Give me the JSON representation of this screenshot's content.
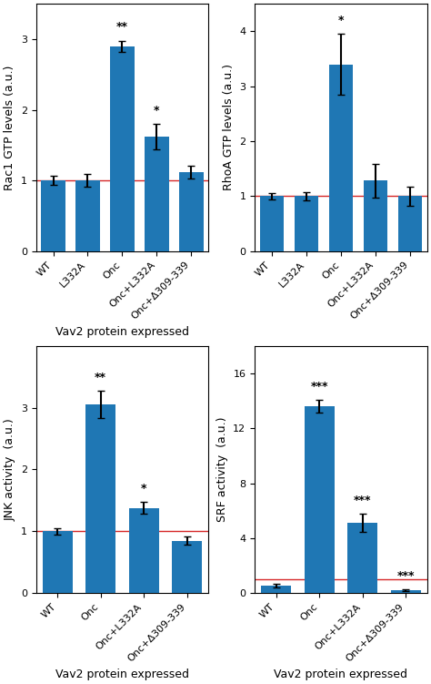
{
  "chart_data": [
    {
      "type": "bar",
      "categories": [
        "WT",
        "L332A",
        "Onc",
        "Onc+L332A",
        "Onc+Δ309-339"
      ],
      "values": [
        1.0,
        1.0,
        2.9,
        1.62,
        1.12
      ],
      "errors": [
        0.06,
        0.09,
        0.08,
        0.18,
        0.09
      ],
      "annotations": [
        null,
        null,
        "**",
        "*",
        null
      ],
      "ylabel": "Rac1 GTP levels (a.u.)",
      "xlabel": "Vav2 protein expressed",
      "ylim": [
        0,
        3.5
      ],
      "yticks": [
        0,
        1,
        2,
        3
      ],
      "reference_line": 1.0
    },
    {
      "type": "bar",
      "categories": [
        "WT",
        "L332A",
        "Onc",
        "Onc+L332A",
        "Onc+Δ309-339"
      ],
      "values": [
        1.0,
        1.0,
        3.4,
        1.28,
        1.0
      ],
      "errors": [
        0.06,
        0.07,
        0.55,
        0.3,
        0.18
      ],
      "annotations": [
        null,
        null,
        "*",
        null,
        null
      ],
      "ylabel": "RhoA GTP levels (a.u.)",
      "ylim": [
        0,
        4.5
      ],
      "yticks": [
        0,
        1,
        2,
        3,
        4
      ],
      "reference_line": 1.0
    },
    {
      "type": "bar",
      "categories": [
        "WT",
        "Onc",
        "Onc+L332A",
        "Onc+Δ309-339"
      ],
      "values": [
        1.0,
        3.05,
        1.38,
        0.85
      ],
      "errors": [
        0.05,
        0.22,
        0.1,
        0.07
      ],
      "annotations": [
        null,
        "**",
        "*",
        null
      ],
      "ylabel": "JNK activity  (a.u.)",
      "xlabel": "Vav2 protein expressed",
      "ylim": [
        0,
        4.0
      ],
      "yticks": [
        0,
        1,
        2,
        3
      ],
      "reference_line": 1.0
    },
    {
      "type": "bar",
      "categories": [
        "WT",
        "Onc",
        "Onc+L332A",
        "Onc+Δ309-339"
      ],
      "values": [
        0.55,
        13.6,
        5.1,
        0.22
      ],
      "errors": [
        0.12,
        0.45,
        0.65,
        0.06
      ],
      "annotations": [
        null,
        "***",
        "***",
        "***"
      ],
      "ylabel": "SRF activity  (a.u.)",
      "xlabel": "Vav2 protein expressed",
      "ylim": [
        0,
        18
      ],
      "yticks": [
        0,
        4,
        8,
        12,
        16
      ],
      "reference_line": 1.0
    }
  ]
}
